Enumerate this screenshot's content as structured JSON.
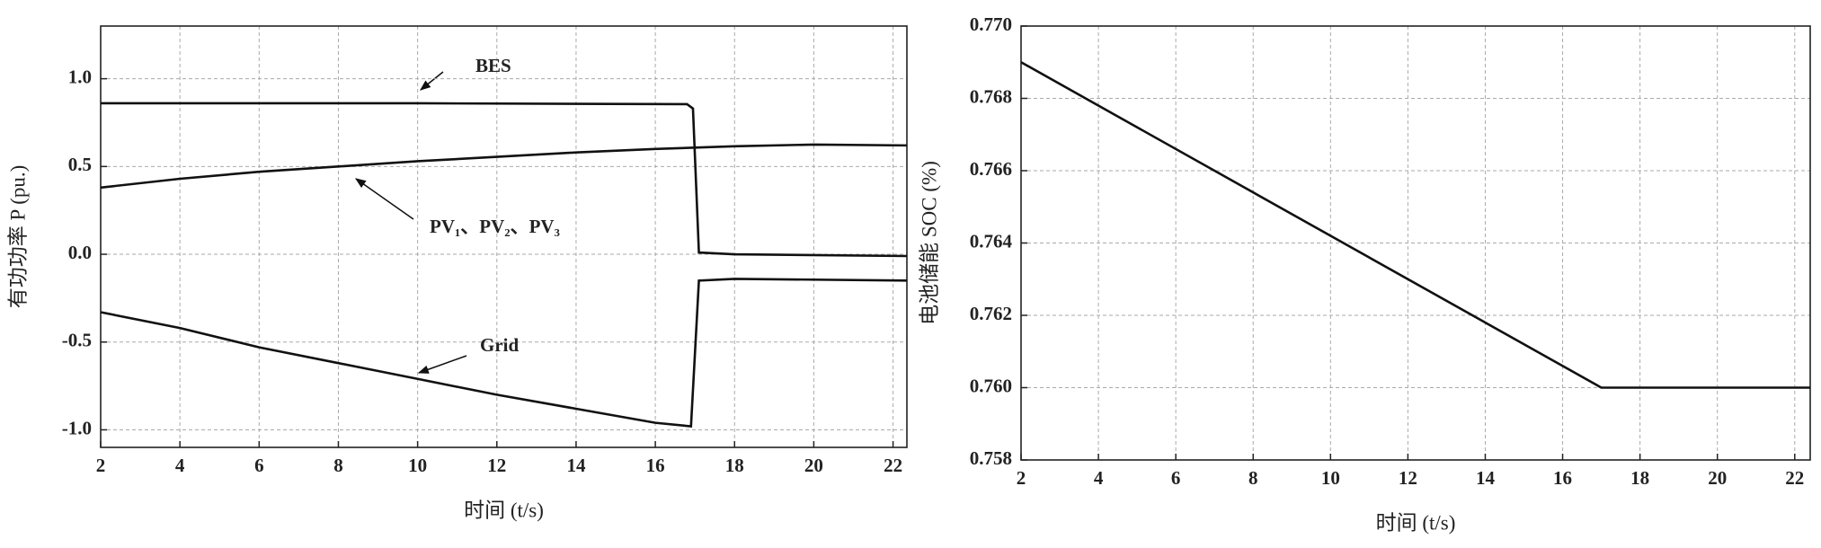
{
  "chart_data": [
    {
      "type": "line",
      "xlabel": "时间 (t/s)",
      "ylabel": "有功功率 P (pu.)",
      "xlim": [
        2,
        22.35
      ],
      "ylim": [
        -1.1,
        1.3
      ],
      "xticks": [
        2,
        4,
        6,
        8,
        10,
        12,
        14,
        16,
        18,
        20,
        22
      ],
      "yticks": [
        {
          "value": -1.0,
          "label": "-1.0"
        },
        -0.5,
        {
          "value": 0.0,
          "label": "0.0"
        },
        0.5,
        {
          "value": 1.0,
          "label": "1.0"
        }
      ],
      "grid": true,
      "series": [
        {
          "name": "BES",
          "color": "#111111",
          "x": [
            2,
            10,
            16.8,
            16.95,
            17.1,
            18,
            22.35
          ],
          "values": [
            0.86,
            0.86,
            0.855,
            0.83,
            0.01,
            0.0,
            -0.01
          ]
        },
        {
          "name": "PV₁、PV₂、PV₃",
          "color": "#111111",
          "x": [
            2,
            4,
            6,
            8,
            10,
            12,
            14,
            16,
            18,
            20,
            22.35
          ],
          "values": [
            0.38,
            0.43,
            0.47,
            0.5,
            0.53,
            0.555,
            0.58,
            0.6,
            0.615,
            0.625,
            0.62
          ]
        },
        {
          "name": "Grid",
          "color": "#111111",
          "x": [
            2,
            4,
            6,
            8,
            10,
            12,
            14,
            16,
            16.9,
            17.1,
            18,
            22.35
          ],
          "values": [
            -0.33,
            -0.42,
            -0.53,
            -0.62,
            -0.71,
            -0.8,
            -0.88,
            -0.96,
            -0.98,
            -0.15,
            -0.14,
            -0.15
          ]
        }
      ]
    },
    {
      "type": "line",
      "xlabel": "时间 (t/s)",
      "ylabel": "电池储能 SOC (%)",
      "xlim": [
        2,
        22.4
      ],
      "ylim": [
        0.758,
        0.77
      ],
      "xticks": [
        2,
        4,
        6,
        8,
        10,
        12,
        14,
        16,
        18,
        20,
        22
      ],
      "yticks": [
        0.758,
        {
          "value": 0.76,
          "label": "0.760"
        },
        0.762,
        0.764,
        0.766,
        0.768,
        {
          "value": 0.77,
          "label": "0.770"
        }
      ],
      "grid": true,
      "series": [
        {
          "color": "#111111",
          "x": [
            2,
            17,
            22.4
          ],
          "values": [
            0.769,
            0.76,
            0.76
          ]
        }
      ]
    }
  ]
}
